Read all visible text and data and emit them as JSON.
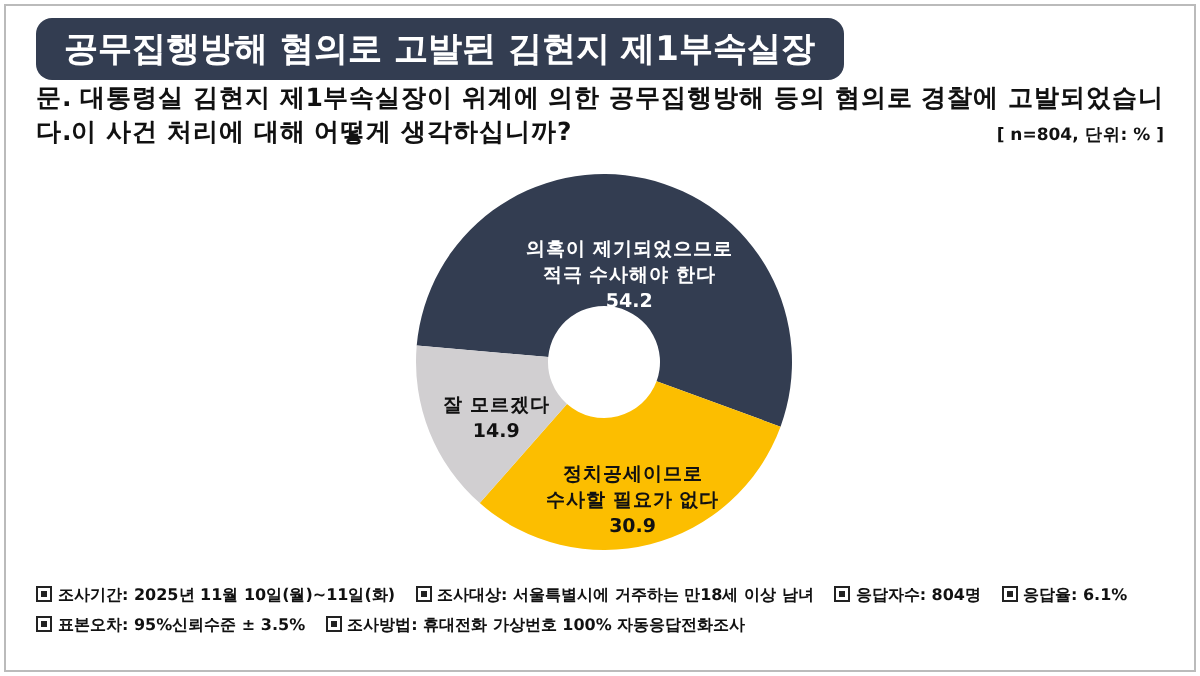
{
  "chart_data": {
    "type": "donut",
    "title": "공무집행방해 혐의로 고발된 김현지 제1부속실장",
    "subtitle": "문. 대통령실 김현지 제1부속실장이 위계에 의한 공무집행방해 등의 혐의로 경찰에 고발되었습니다.이 사건 처리에 대해 어떻게 생각하십니까?",
    "categories": [
      "의혹이 제기되었으므로\n적극 수사해야 한다",
      "정치공세이므로\n수사할 필요가 없다",
      "잘 모르겠다"
    ],
    "values": [
      54.2,
      30.9,
      14.9
    ],
    "colors": [
      "#333d51",
      "#fcbe00",
      "#d1cfd1"
    ],
    "data_labels": true,
    "legend": false,
    "annotations": [
      "[ n=804, 단위: % ]",
      "조사기간: 2025년 11월 10일(월)~11일(화)",
      "조사대상: 서울특별시에 거주하는 만18세 이상 남녀",
      "응답자수: 804명",
      "응답율: 6.1%",
      "표본오차: 95%신뢰수준 ± 3.5%",
      "조사방법: 휴대전화 가상번호 100% 자동응답전화조사"
    ]
  }
}
